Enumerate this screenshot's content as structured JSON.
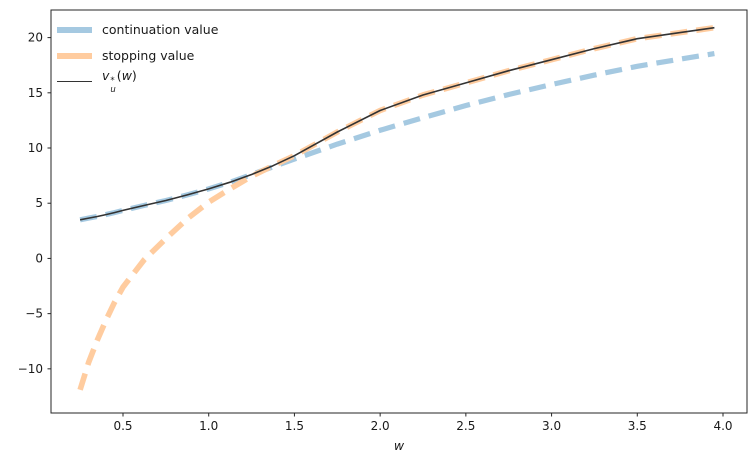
{
  "figure": {
    "background": "#ffffff",
    "spine_color": "#262626",
    "tick_label_color": "#1a1a1a"
  },
  "chart_data": {
    "type": "line",
    "title": "",
    "xlabel": "w",
    "ylabel": "",
    "xlim": [
      0.08,
      4.14
    ],
    "ylim": [
      -14.0,
      22.5
    ],
    "grid": false,
    "legend_position": "upper-left",
    "x_ticks": [
      0.5,
      1.0,
      1.5,
      2.0,
      2.5,
      3.0,
      3.5,
      4.0
    ],
    "x_tick_labels": [
      "0.5",
      "1.0",
      "1.5",
      "2.0",
      "2.5",
      "3.0",
      "3.5",
      "4.0"
    ],
    "y_ticks": [
      -10,
      -5,
      0,
      5,
      10,
      15,
      20
    ],
    "y_tick_labels": [
      "−10",
      "−5",
      "0",
      "5",
      "10",
      "15",
      "20"
    ],
    "x": [
      0.25,
      0.3,
      0.35,
      0.4,
      0.45,
      0.5,
      0.625,
      0.75,
      0.875,
      1.0,
      1.125,
      1.25,
      1.375,
      1.5,
      1.75,
      2.0,
      2.25,
      2.5,
      2.75,
      3.0,
      3.25,
      3.5,
      3.75,
      3.95
    ],
    "series": [
      {
        "name": "continuation value",
        "color": "#a5c9e1",
        "style": "dashed",
        "dash": [
          17,
          9
        ],
        "width": 5.2,
        "values": [
          3.5,
          3.65,
          3.8,
          3.97,
          4.15,
          4.35,
          4.8,
          5.25,
          5.75,
          6.3,
          6.9,
          7.6,
          8.3,
          9.0,
          10.35,
          11.6,
          12.75,
          13.85,
          14.85,
          15.75,
          16.6,
          17.4,
          18.05,
          18.55
        ]
      },
      {
        "name": "stopping value",
        "color": "#ffcc9f",
        "style": "dashed",
        "dash": [
          17,
          9
        ],
        "width": 5.6,
        "values": [
          -11.9,
          -9.4,
          -7.4,
          -5.6,
          -4.0,
          -2.6,
          -0.1,
          1.8,
          3.6,
          5.1,
          6.3,
          7.45,
          8.4,
          9.3,
          11.45,
          13.4,
          14.8,
          15.9,
          17.0,
          18.0,
          19.0,
          19.9,
          20.45,
          20.9
        ]
      },
      {
        "name": "v_u^*(w)",
        "color": "#333333",
        "style": "solid",
        "dash": null,
        "width": 1.6,
        "values": [
          3.5,
          3.65,
          3.8,
          3.97,
          4.15,
          4.35,
          4.8,
          5.25,
          5.75,
          6.3,
          6.9,
          7.6,
          8.4,
          9.3,
          11.45,
          13.4,
          14.8,
          15.9,
          17.0,
          18.0,
          19.0,
          19.9,
          20.45,
          20.9
        ]
      }
    ]
  },
  "legend": {
    "items": [
      {
        "label": "continuation value"
      },
      {
        "label": "stopping value"
      },
      {
        "base": "v",
        "sup": "*",
        "sub": "u",
        "open": "(",
        "arg": "w",
        "close": ")"
      }
    ]
  }
}
